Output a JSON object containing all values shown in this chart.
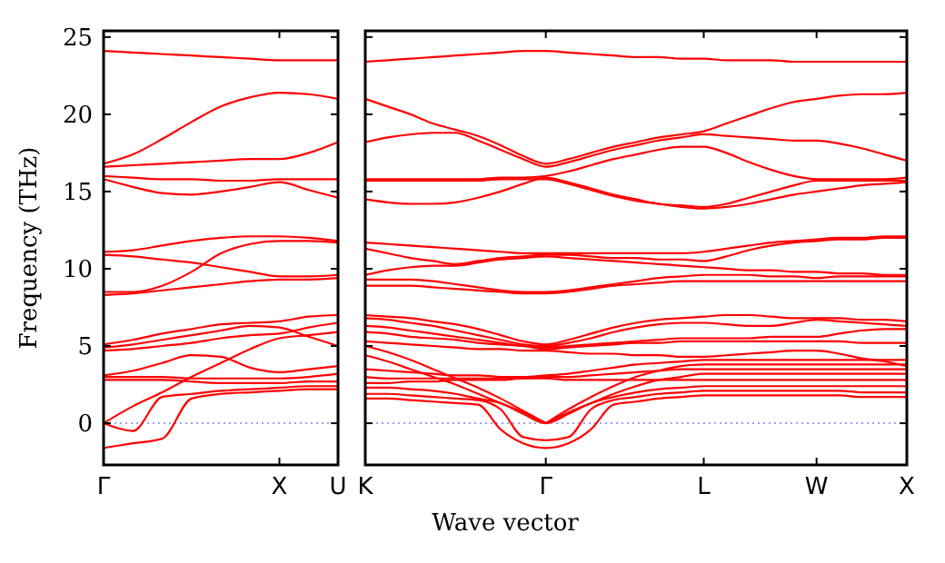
{
  "chart_data": [
    {
      "type": "line",
      "ylabel": "Frequency (THz)",
      "ylim": [
        -2.7,
        25.4
      ],
      "categories": [
        "Γ",
        null,
        null,
        null,
        null,
        null,
        "X",
        null,
        "U"
      ],
      "yticks": [
        0,
        5,
        10,
        15,
        20,
        25
      ],
      "ref_lines": [
        {
          "axis": "y",
          "value": 0,
          "color": "#8080ff",
          "line_style": "dotted"
        }
      ],
      "series": [
        {
          "color": "#ff0000",
          "values": [
            24.1,
            24.0,
            23.9,
            23.8,
            23.7,
            23.6,
            23.5,
            23.5,
            23.5
          ]
        },
        {
          "color": "#ff0000",
          "values": [
            16.8,
            17.4,
            18.4,
            19.5,
            20.5,
            21.1,
            21.4,
            21.3,
            21.0
          ]
        },
        {
          "color": "#ff0000",
          "values": [
            16.6,
            16.7,
            16.8,
            16.9,
            17.0,
            17.1,
            17.1,
            17.5,
            18.2
          ]
        },
        {
          "color": "#ff0000",
          "values": [
            16.0,
            15.9,
            15.8,
            15.8,
            15.7,
            15.7,
            15.8,
            15.8,
            15.8
          ]
        },
        {
          "color": "#ff0000",
          "values": [
            15.8,
            15.3,
            14.9,
            14.8,
            15.0,
            15.3,
            15.6,
            15.1,
            14.6
          ]
        },
        {
          "color": "#ff0000",
          "values": [
            11.1,
            11.2,
            11.5,
            11.8,
            12.0,
            12.1,
            12.1,
            12.0,
            11.8
          ]
        },
        {
          "color": "#ff0000",
          "values": [
            10.9,
            10.8,
            10.6,
            10.4,
            10.1,
            9.8,
            9.5,
            9.5,
            9.6
          ]
        },
        {
          "color": "#ff0000",
          "values": [
            8.5,
            8.5,
            8.9,
            9.8,
            11.0,
            11.6,
            11.8,
            11.8,
            11.7
          ]
        },
        {
          "color": "#ff0000",
          "values": [
            8.3,
            8.4,
            8.6,
            8.8,
            9.0,
            9.2,
            9.3,
            9.3,
            9.4
          ]
        },
        {
          "color": "#ff0000",
          "values": [
            5.1,
            5.4,
            5.8,
            6.1,
            6.4,
            6.5,
            6.6,
            6.9,
            7.0
          ]
        },
        {
          "color": "#ff0000",
          "values": [
            4.9,
            5.1,
            5.4,
            5.7,
            6.0,
            6.3,
            6.2,
            5.6,
            5.0
          ]
        },
        {
          "color": "#ff0000",
          "values": [
            4.7,
            4.8,
            5.0,
            5.2,
            5.5,
            5.7,
            5.8,
            6.2,
            6.5
          ]
        },
        {
          "color": "#ff0000",
          "values": [
            3.0,
            3.0,
            3.0,
            2.9,
            2.9,
            2.9,
            2.9,
            3.0,
            3.2
          ]
        },
        {
          "color": "#ff0000",
          "values": [
            3.1,
            3.4,
            3.9,
            4.4,
            4.3,
            3.6,
            3.3,
            3.5,
            3.7
          ]
        },
        {
          "color": "#ff0000",
          "values": [
            2.8,
            2.8,
            2.8,
            2.7,
            2.6,
            2.6,
            2.6,
            2.7,
            2.7
          ]
        },
        {
          "color": "#ff0000",
          "values": [
            0,
            1.1,
            2.0,
            3.0,
            3.9,
            4.8,
            5.5,
            5.7,
            5.9
          ]
        },
        {
          "color": "#ff0000",
          "values": [
            0,
            -0.5,
            1.7,
            1.9,
            2.1,
            2.2,
            2.3,
            2.4,
            2.4
          ]
        },
        {
          "color": "#ff0000",
          "values": [
            -1.6,
            -1.3,
            -1.0,
            1.6,
            1.9,
            2.0,
            2.1,
            2.2,
            2.2
          ]
        }
      ]
    },
    {
      "type": "line",
      "xlabel": "Wave vector",
      "ylim": [
        -2.7,
        25.4
      ],
      "tick_labels": "x",
      "categories": [
        "K",
        null,
        null,
        null,
        null,
        null,
        null,
        null,
        "Γ",
        null,
        null,
        null,
        null,
        null,
        null,
        "L",
        null,
        null,
        null,
        null,
        "W",
        null,
        null,
        null,
        "X"
      ],
      "yticks": [
        0,
        5,
        10,
        15,
        20,
        25
      ],
      "ref_lines": [
        {
          "axis": "y",
          "value": 0,
          "color": "#8080ff",
          "line_style": "dotted"
        }
      ],
      "series": [
        {
          "color": "#ff0000",
          "values": [
            23.4,
            23.5,
            23.6,
            23.7,
            23.8,
            23.9,
            24.0,
            24.1,
            24.1,
            24.0,
            23.9,
            23.8,
            23.7,
            23.7,
            23.6,
            23.6,
            23.5,
            23.5,
            23.5,
            23.4,
            23.4,
            23.4,
            23.4,
            23.4,
            23.4
          ]
        },
        {
          "color": "#ff0000",
          "values": [
            21.0,
            20.5,
            20.0,
            19.4,
            19.0,
            18.6,
            18.0,
            17.3,
            16.8,
            17.1,
            17.5,
            17.9,
            18.2,
            18.5,
            18.7,
            18.9,
            19.4,
            19.9,
            20.4,
            20.8,
            21.0,
            21.2,
            21.3,
            21.3,
            21.4
          ]
        },
        {
          "color": "#ff0000",
          "values": [
            18.2,
            18.5,
            18.7,
            18.8,
            18.8,
            18.3,
            17.7,
            17.1,
            16.6,
            16.9,
            17.3,
            17.7,
            18.0,
            18.3,
            18.5,
            18.7,
            18.6,
            18.5,
            18.4,
            18.3,
            18.3,
            18.1,
            17.8,
            17.4,
            17.0
          ]
        },
        {
          "color": "#ff0000",
          "values": [
            15.8,
            15.8,
            15.8,
            15.8,
            15.8,
            15.8,
            15.9,
            15.9,
            16.0,
            16.3,
            16.7,
            17.1,
            17.4,
            17.7,
            17.9,
            17.9,
            17.5,
            16.9,
            16.4,
            16.0,
            15.8,
            15.8,
            15.8,
            15.8,
            15.9
          ]
        },
        {
          "color": "#ff0000",
          "values": [
            14.5,
            14.3,
            14.2,
            14.2,
            14.3,
            14.6,
            15.0,
            15.5,
            15.9,
            15.6,
            15.2,
            14.8,
            14.5,
            14.2,
            14.1,
            14.0,
            14.2,
            14.6,
            15.0,
            15.4,
            15.7,
            15.7,
            15.7,
            15.7,
            15.7
          ]
        },
        {
          "color": "#ff0000",
          "values": [
            15.7,
            15.7,
            15.7,
            15.7,
            15.7,
            15.7,
            15.8,
            15.8,
            15.8,
            15.5,
            15.1,
            14.7,
            14.4,
            14.2,
            14.0,
            13.9,
            14.0,
            14.2,
            14.5,
            14.8,
            15.0,
            15.2,
            15.4,
            15.5,
            15.6
          ]
        },
        {
          "color": "#ff0000",
          "values": [
            11.7,
            11.6,
            11.5,
            11.4,
            11.3,
            11.2,
            11.1,
            11.0,
            11.0,
            11.0,
            11.0,
            11.0,
            11.0,
            11.0,
            11.0,
            11.1,
            11.3,
            11.5,
            11.7,
            11.8,
            11.9,
            12.0,
            12.0,
            12.1,
            12.1
          ]
        },
        {
          "color": "#ff0000",
          "values": [
            11.3,
            11.0,
            10.7,
            10.5,
            10.3,
            10.5,
            10.7,
            10.8,
            10.9,
            10.9,
            10.8,
            10.7,
            10.7,
            10.6,
            10.6,
            10.5,
            10.8,
            11.2,
            11.5,
            11.7,
            11.8,
            11.9,
            11.9,
            12.0,
            12.0
          ]
        },
        {
          "color": "#ff0000",
          "values": [
            9.6,
            9.9,
            10.1,
            10.2,
            10.2,
            10.4,
            10.6,
            10.7,
            10.8,
            10.7,
            10.6,
            10.5,
            10.4,
            10.3,
            10.2,
            10.1,
            10.0,
            9.9,
            9.9,
            9.8,
            9.8,
            9.7,
            9.7,
            9.6,
            9.6
          ]
        },
        {
          "color": "#ff0000",
          "values": [
            9.3,
            9.3,
            9.3,
            9.2,
            9.0,
            8.8,
            8.6,
            8.5,
            8.5,
            8.6,
            8.8,
            9.0,
            9.2,
            9.4,
            9.5,
            9.6,
            9.6,
            9.6,
            9.5,
            9.5,
            9.4,
            9.5,
            9.5,
            9.5,
            9.5
          ]
        },
        {
          "color": "#ff0000",
          "values": [
            8.9,
            8.9,
            8.9,
            8.8,
            8.7,
            8.6,
            8.5,
            8.4,
            8.4,
            8.5,
            8.7,
            8.9,
            9.0,
            9.1,
            9.2,
            9.2,
            9.2,
            9.2,
            9.2,
            9.2,
            9.2,
            9.2,
            9.2,
            9.2,
            9.2
          ]
        },
        {
          "color": "#ff0000",
          "values": [
            7.0,
            6.9,
            6.8,
            6.6,
            6.4,
            6.1,
            5.7,
            5.3,
            5.1,
            5.4,
            5.8,
            6.2,
            6.5,
            6.7,
            6.8,
            6.9,
            7.0,
            7.0,
            6.9,
            6.8,
            6.8,
            6.8,
            6.7,
            6.7,
            6.6
          ]
        },
        {
          "color": "#ff0000",
          "values": [
            6.8,
            6.7,
            6.5,
            6.3,
            6.0,
            5.7,
            5.4,
            5.1,
            5.0,
            5.2,
            5.5,
            5.9,
            6.2,
            6.4,
            6.5,
            6.5,
            6.4,
            6.3,
            6.3,
            6.5,
            6.7,
            6.6,
            6.5,
            6.4,
            6.3
          ]
        },
        {
          "color": "#ff0000",
          "values": [
            6.3,
            6.2,
            6.0,
            5.8,
            5.6,
            5.4,
            5.2,
            5.0,
            4.9,
            5.0,
            5.1,
            5.2,
            5.3,
            5.4,
            5.5,
            5.5,
            5.5,
            5.5,
            5.6,
            5.6,
            5.6,
            5.8,
            6.0,
            6.1,
            6.1
          ]
        },
        {
          "color": "#ff0000",
          "values": [
            5.9,
            5.8,
            5.6,
            5.5,
            5.4,
            5.2,
            5.1,
            5.0,
            4.8,
            4.9,
            5.0,
            5.1,
            5.2,
            5.2,
            5.3,
            5.3,
            5.3,
            5.3,
            5.3,
            5.3,
            5.3,
            5.3,
            5.2,
            5.2,
            5.2
          ]
        },
        {
          "color": "#ff0000",
          "values": [
            5.3,
            5.2,
            5.1,
            5.0,
            4.9,
            4.8,
            4.8,
            4.7,
            4.7,
            4.6,
            4.5,
            4.5,
            4.4,
            4.4,
            4.3,
            4.3,
            4.4,
            4.5,
            4.6,
            4.7,
            4.7,
            4.5,
            4.2,
            4.0,
            3.7
          ]
        },
        {
          "color": "#ff0000",
          "values": [
            3.5,
            3.4,
            3.3,
            3.2,
            3.1,
            3.1,
            3.0,
            3.0,
            3.1,
            3.2,
            3.4,
            3.6,
            3.8,
            3.9,
            4.0,
            4.1,
            4.1,
            4.1,
            4.1,
            4.1,
            4.1,
            4.1,
            4.1,
            4.1,
            4.1
          ]
        },
        {
          "color": "#ff0000",
          "values": [
            3.0,
            2.9,
            2.9,
            2.9,
            2.9,
            2.9,
            2.9,
            2.9,
            3.0,
            3.0,
            3.1,
            3.2,
            3.3,
            3.4,
            3.5,
            3.5,
            3.5,
            3.5,
            3.5,
            3.5,
            3.5,
            3.5,
            3.5,
            3.5,
            3.5
          ]
        },
        {
          "color": "#ff0000",
          "values": [
            2.6,
            2.6,
            2.7,
            2.7,
            2.8,
            2.8,
            2.8,
            2.9,
            2.9,
            2.8,
            2.8,
            2.8,
            2.8,
            2.8,
            2.8,
            2.8,
            2.8,
            2.8,
            2.8,
            2.8,
            2.8,
            2.8,
            2.8,
            2.8,
            2.8
          ]
        },
        {
          "color": "#ff0000",
          "values": [
            2.3,
            2.3,
            2.2,
            2.1,
            1.9,
            1.6,
            1.3,
            0.6,
            0.0,
            0.6,
            1.3,
            1.7,
            2.0,
            2.2,
            2.3,
            2.4,
            2.4,
            2.4,
            2.4,
            2.4,
            2.4,
            2.4,
            2.4,
            2.4,
            2.4
          ]
        },
        {
          "color": "#ff0000",
          "values": [
            1.9,
            1.9,
            1.8,
            1.7,
            1.6,
            1.5,
            0.9,
            -0.9,
            -1.1,
            -0.9,
            0.9,
            1.5,
            1.7,
            1.9,
            2.0,
            2.1,
            2.1,
            2.1,
            2.1,
            2.1,
            2.1,
            2.1,
            2.0,
            2.0,
            2.0
          ]
        },
        {
          "color": "#ff0000",
          "values": [
            1.6,
            1.6,
            1.5,
            1.4,
            1.3,
            1.2,
            -0.4,
            -1.3,
            -1.6,
            -1.3,
            -0.4,
            1.2,
            1.4,
            1.6,
            1.7,
            1.8,
            1.8,
            1.8,
            1.8,
            1.8,
            1.8,
            1.8,
            1.7,
            1.7,
            1.7
          ]
        },
        {
          "color": "#ff0000",
          "values": [
            5.0,
            4.6,
            4.1,
            3.5,
            2.9,
            2.3,
            1.6,
            0.8,
            0.0,
            null,
            null,
            null,
            null,
            null,
            null,
            null,
            null,
            null,
            null,
            null,
            null,
            null,
            null,
            null,
            null
          ]
        },
        {
          "color": "#ff0000",
          "values": [
            null,
            null,
            null,
            null,
            null,
            null,
            null,
            null,
            0.0,
            0.9,
            1.7,
            2.4,
            3.0,
            3.4,
            3.7,
            3.8,
            3.8,
            3.8,
            3.8,
            3.8,
            3.8,
            3.8,
            3.8,
            3.8,
            3.8
          ]
        },
        {
          "color": "#ff0000",
          "values": [
            4.4,
            4.0,
            3.5,
            3.0,
            2.5,
            1.9,
            1.3,
            0.7,
            0.0,
            null,
            null,
            null,
            null,
            null,
            null,
            null,
            null,
            null,
            null,
            null,
            null,
            null,
            null,
            null,
            null
          ]
        },
        {
          "color": "#ff0000",
          "values": [
            null,
            null,
            null,
            null,
            null,
            null,
            null,
            null,
            0.0,
            0.7,
            1.3,
            1.9,
            2.4,
            2.8,
            3.0,
            3.2,
            3.2,
            3.2,
            3.2,
            3.2,
            3.2,
            3.2,
            3.2,
            3.2,
            3.2
          ]
        }
      ]
    }
  ]
}
